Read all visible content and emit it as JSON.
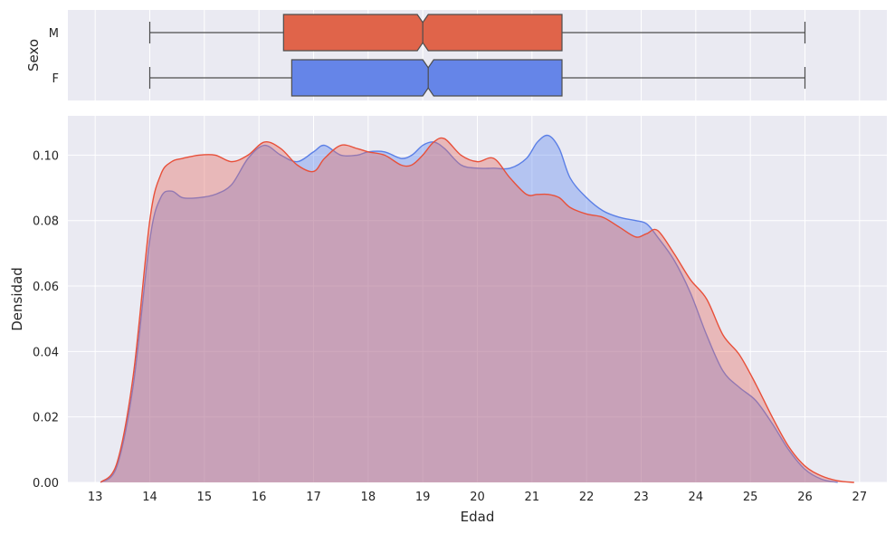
{
  "chart_data": [
    {
      "type": "boxplot",
      "orientation": "horizontal",
      "notched": true,
      "ylabel": "Sexo",
      "xlim": [
        12.5,
        27.5
      ],
      "grid": true,
      "categories": [
        "M",
        "F"
      ],
      "boxes": [
        {
          "category": "M",
          "color": "#e0644a",
          "whisker_low": 14.0,
          "q1": 16.45,
          "median": 19.0,
          "q3": 21.55,
          "whisker_high": 26.0,
          "notch_low": 18.9,
          "notch_high": 19.1
        },
        {
          "category": "F",
          "color": "#6585e8",
          "whisker_low": 14.0,
          "q1": 16.6,
          "median": 19.1,
          "q3": 21.55,
          "whisker_high": 26.0,
          "notch_low": 19.0,
          "notch_high": 19.2
        }
      ]
    },
    {
      "type": "area",
      "xlabel": "Edad",
      "ylabel": "Densidad",
      "xlim": [
        12.5,
        27.5
      ],
      "ylim": [
        0,
        0.112
      ],
      "xticks": [
        "13",
        "14",
        "15",
        "16",
        "17",
        "18",
        "19",
        "20",
        "21",
        "22",
        "23",
        "24",
        "25",
        "26",
        "27"
      ],
      "yticks": [
        "0.00",
        "0.02",
        "0.04",
        "0.06",
        "0.08",
        "0.10"
      ],
      "grid": true,
      "series": [
        {
          "key": "F",
          "line_color": "#5b7fe6",
          "fill_color": "rgba(100,140,240,0.40)",
          "x": [
            13.1,
            13.4,
            13.7,
            14.0,
            14.2,
            14.4,
            14.6,
            14.9,
            15.2,
            15.5,
            15.8,
            16.1,
            16.4,
            16.7,
            17.0,
            17.2,
            17.5,
            17.8,
            18.0,
            18.3,
            18.6,
            18.8,
            19.0,
            19.2,
            19.4,
            19.7,
            20.0,
            20.3,
            20.6,
            20.9,
            21.1,
            21.3,
            21.5,
            21.7,
            22.0,
            22.3,
            22.6,
            22.9,
            23.1,
            23.3,
            23.6,
            23.9,
            24.2,
            24.5,
            24.8,
            25.1,
            25.4,
            25.7,
            26.0,
            26.3,
            26.6
          ],
          "y": [
            0.0,
            0.005,
            0.03,
            0.074,
            0.087,
            0.089,
            0.087,
            0.087,
            0.088,
            0.091,
            0.099,
            0.103,
            0.1,
            0.098,
            0.101,
            0.103,
            0.1,
            0.1,
            0.101,
            0.101,
            0.099,
            0.1,
            0.103,
            0.104,
            0.102,
            0.097,
            0.096,
            0.096,
            0.096,
            0.099,
            0.104,
            0.106,
            0.102,
            0.093,
            0.087,
            0.083,
            0.081,
            0.08,
            0.079,
            0.075,
            0.068,
            0.058,
            0.045,
            0.034,
            0.029,
            0.025,
            0.018,
            0.01,
            0.004,
            0.001,
            0.0
          ]
        },
        {
          "key": "M",
          "line_color": "#e8503a",
          "fill_color": "rgba(230,110,100,0.40)",
          "x": [
            13.1,
            13.4,
            13.7,
            14.0,
            14.2,
            14.4,
            14.6,
            14.9,
            15.2,
            15.5,
            15.8,
            16.1,
            16.4,
            16.7,
            17.0,
            17.2,
            17.5,
            17.8,
            18.0,
            18.3,
            18.6,
            18.8,
            19.0,
            19.2,
            19.4,
            19.7,
            20.0,
            20.3,
            20.6,
            20.9,
            21.1,
            21.3,
            21.5,
            21.7,
            22.0,
            22.3,
            22.6,
            22.9,
            23.1,
            23.3,
            23.6,
            23.9,
            24.2,
            24.5,
            24.8,
            25.1,
            25.4,
            25.7,
            26.0,
            26.3,
            26.6,
            26.9
          ],
          "y": [
            0.0,
            0.006,
            0.033,
            0.08,
            0.094,
            0.098,
            0.099,
            0.1,
            0.1,
            0.098,
            0.1,
            0.104,
            0.102,
            0.097,
            0.095,
            0.099,
            0.103,
            0.102,
            0.101,
            0.1,
            0.097,
            0.097,
            0.1,
            0.104,
            0.105,
            0.1,
            0.098,
            0.099,
            0.093,
            0.088,
            0.088,
            0.088,
            0.087,
            0.084,
            0.082,
            0.081,
            0.078,
            0.075,
            0.076,
            0.077,
            0.07,
            0.062,
            0.056,
            0.045,
            0.039,
            0.03,
            0.02,
            0.011,
            0.005,
            0.002,
            0.0005,
            0.0
          ]
        }
      ]
    }
  ]
}
